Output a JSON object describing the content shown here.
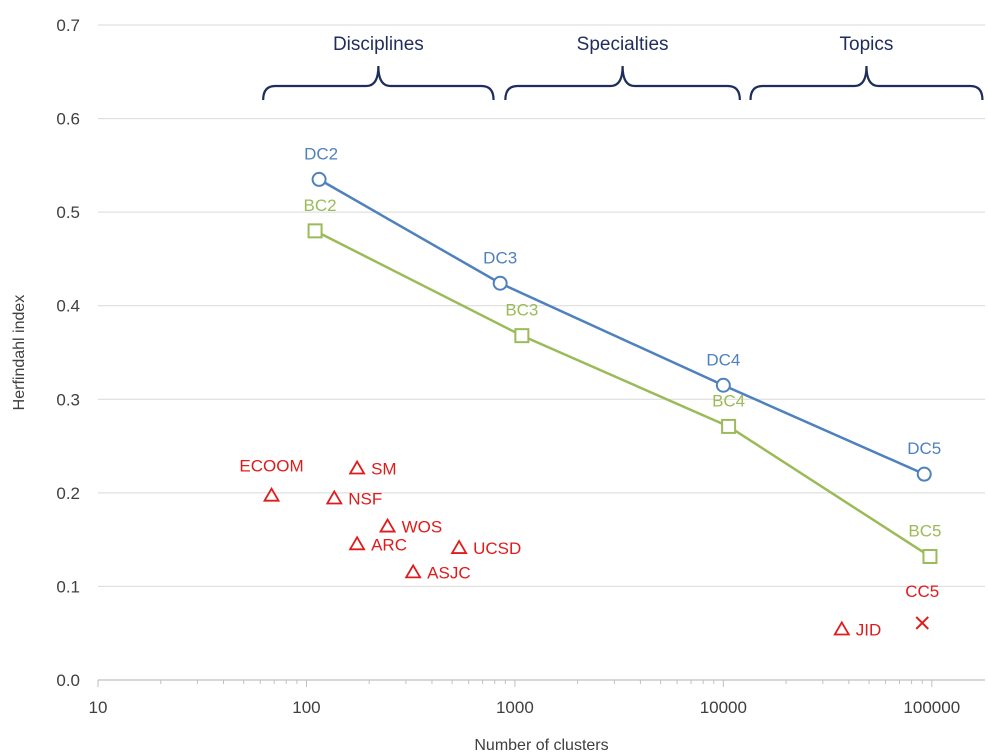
{
  "chart_data": {
    "type": "scatter",
    "xscale": "log",
    "xlim": [
      10,
      180000
    ],
    "ylim": [
      0,
      0.7
    ],
    "xlabel": "Number of clusters",
    "ylabel": "Herfindahl index",
    "x_ticks": [
      10,
      100,
      1000,
      10000,
      100000
    ],
    "x_tick_labels": [
      "10",
      "100",
      "1000",
      "10000",
      "100000"
    ],
    "y_ticks": [
      0,
      0.1,
      0.2,
      0.3,
      0.4,
      0.5,
      0.6,
      0.7
    ],
    "y_tick_labels": [
      "0.0",
      "0.1",
      "0.2",
      "0.3",
      "0.4",
      "0.5",
      "0.6",
      "0.7"
    ],
    "grid": "horizontal",
    "colors": {
      "dc": "#4f81bd",
      "bc": "#9bbb59",
      "red": "#e01b1b",
      "brace": "#1f2d5c",
      "grid": "#d9d9d9",
      "axis": "#bfbfbf"
    },
    "brackets": [
      {
        "label": "Disciplines",
        "from": 62,
        "to": 790
      },
      {
        "label": "Specialties",
        "from": 900,
        "to": 12000
      },
      {
        "label": "Topics",
        "from": 13500,
        "to": 175000
      }
    ],
    "series": [
      {
        "id": "dc",
        "marker": "circle",
        "line": true,
        "points": [
          {
            "label": "DC2",
            "x": 115,
            "y": 0.535
          },
          {
            "label": "DC3",
            "x": 850,
            "y": 0.424
          },
          {
            "label": "DC4",
            "x": 10000,
            "y": 0.315
          },
          {
            "label": "DC5",
            "x": 92000,
            "y": 0.22
          }
        ]
      },
      {
        "id": "bc",
        "marker": "square",
        "line": true,
        "points": [
          {
            "label": "BC2",
            "x": 110,
            "y": 0.48
          },
          {
            "label": "BC3",
            "x": 1080,
            "y": 0.368
          },
          {
            "label": "BC4",
            "x": 10600,
            "y": 0.271
          },
          {
            "label": "BC5",
            "x": 98000,
            "y": 0.132
          }
        ]
      },
      {
        "id": "other",
        "marker": "triangle",
        "line": false,
        "points": [
          {
            "label": "ECOOM",
            "x": 68,
            "y": 0.197
          },
          {
            "label": "SM",
            "x": 175,
            "y": 0.226
          },
          {
            "label": "NSF",
            "x": 136,
            "y": 0.194
          },
          {
            "label": "WOS",
            "x": 245,
            "y": 0.164
          },
          {
            "label": "ARC",
            "x": 175,
            "y": 0.145
          },
          {
            "label": "UCSD",
            "x": 540,
            "y": 0.141
          },
          {
            "label": "ASJC",
            "x": 325,
            "y": 0.115
          },
          {
            "label": "JID",
            "x": 37000,
            "y": 0.054
          }
        ]
      },
      {
        "id": "cc",
        "marker": "cross",
        "line": false,
        "points": [
          {
            "label": "CC5",
            "x": 90000,
            "y": 0.061
          }
        ]
      }
    ]
  }
}
